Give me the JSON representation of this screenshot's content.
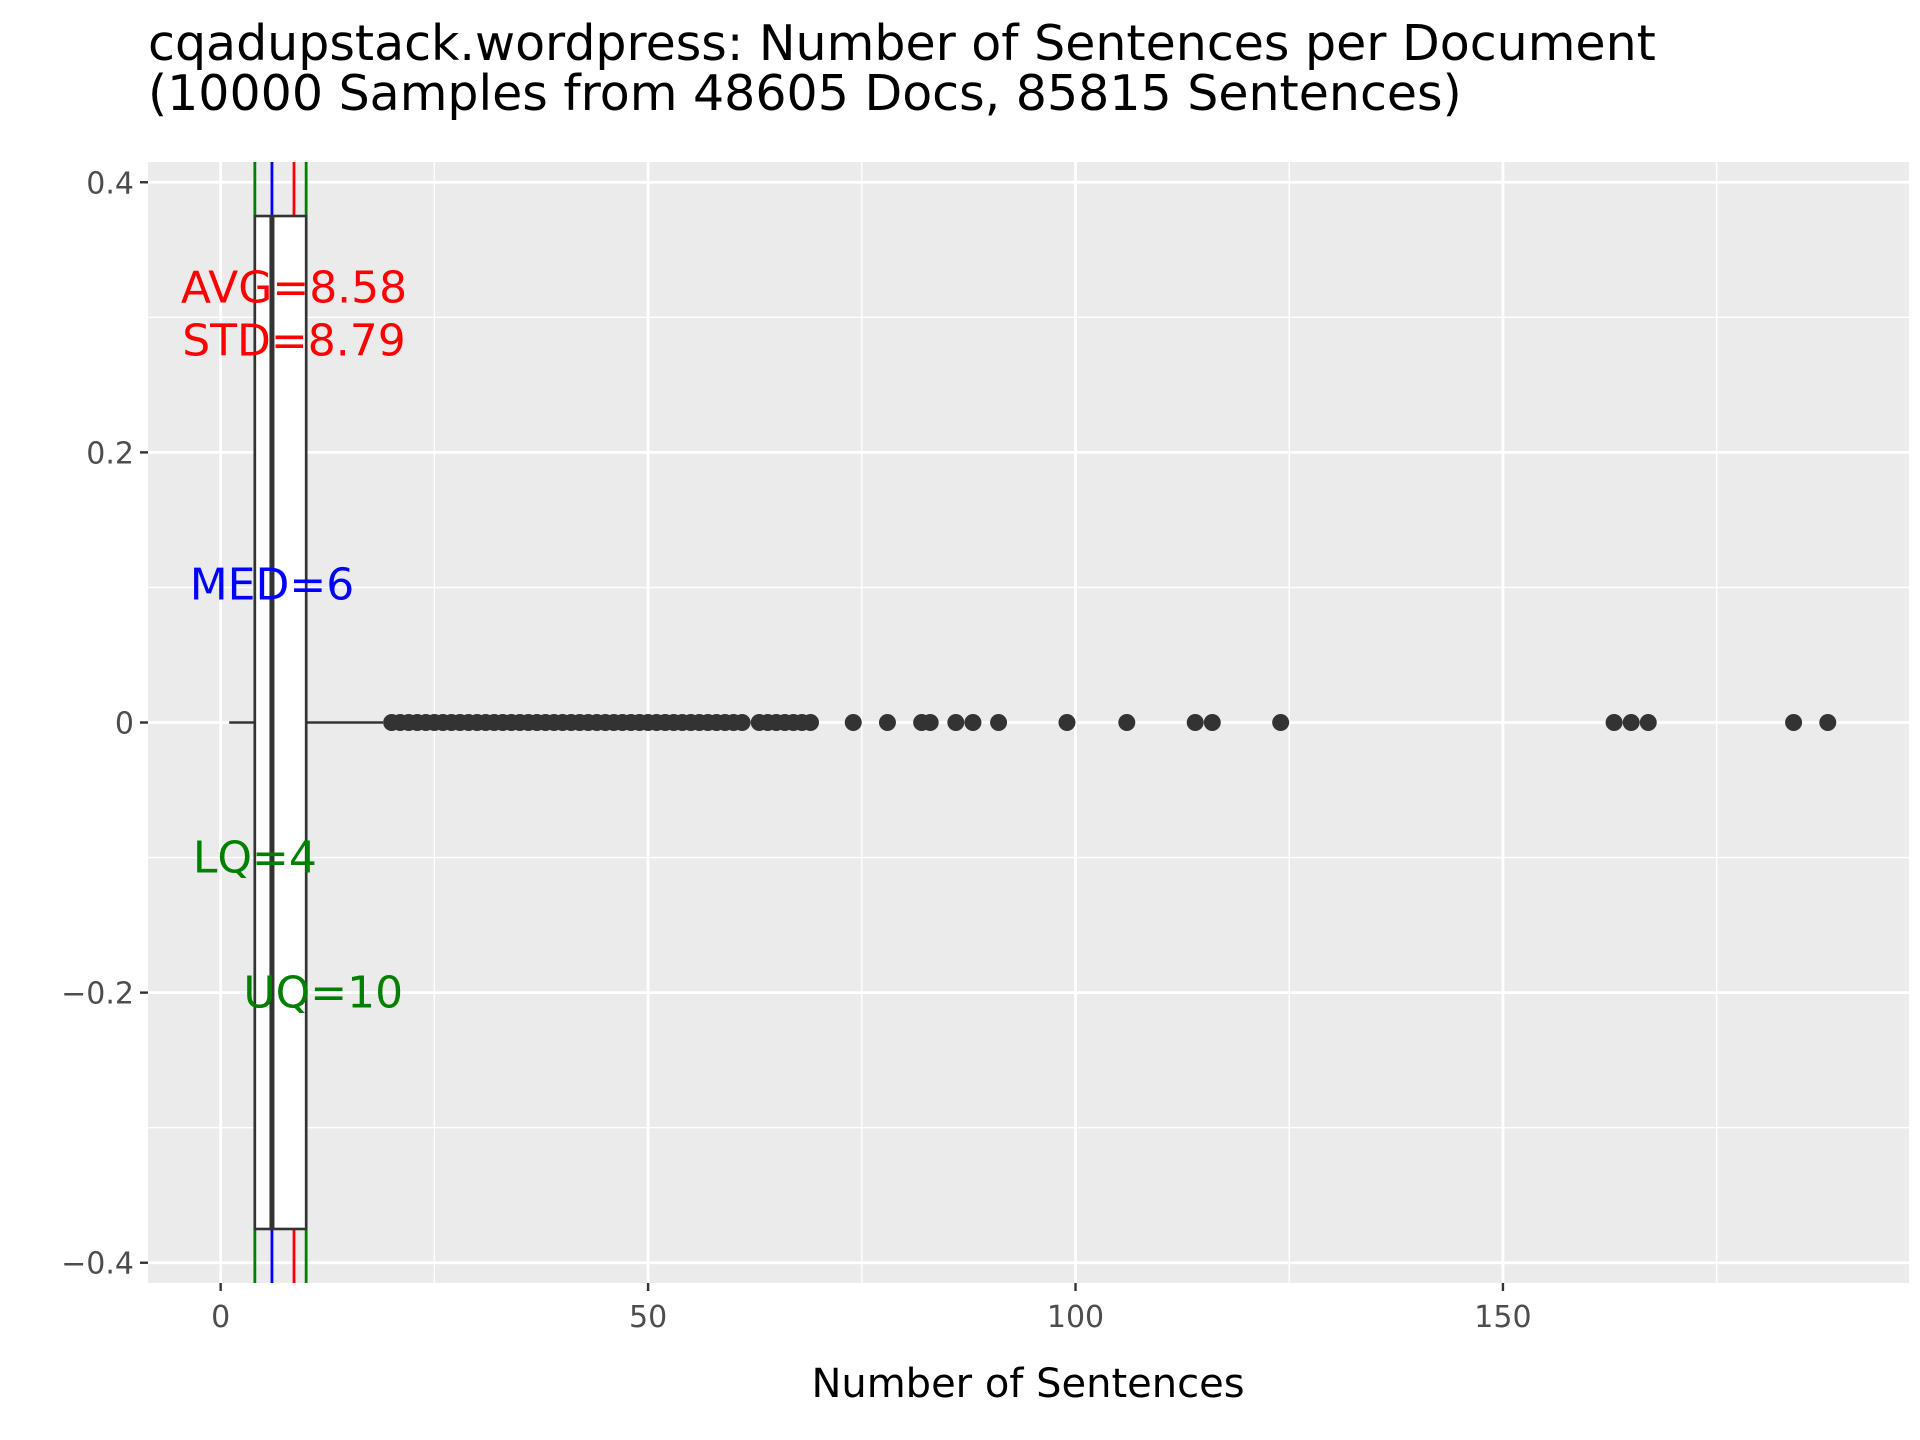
{
  "chart_data": {
    "type": "boxplot",
    "title_line1": "cqadupstack.wordpress: Number of Sentences per Document",
    "title_line2": "(10000 Samples from 48605 Docs, 85815 Sentences)",
    "xlabel": "Number of Sentences",
    "ylabel": "",
    "xlim": [
      -8.5,
      197.5
    ],
    "ylim": [
      -0.415,
      0.415
    ],
    "x_ticks": [
      {
        "value": 0,
        "label": "0"
      },
      {
        "value": 50,
        "label": "50"
      },
      {
        "value": 100,
        "label": "100"
      },
      {
        "value": 150,
        "label": "150"
      }
    ],
    "y_ticks": [
      {
        "value": 0.4,
        "label": "0.4"
      },
      {
        "value": 0.2,
        "label": "0.2"
      },
      {
        "value": 0,
        "label": "0"
      },
      {
        "value": -0.2,
        "label": "−0.2"
      },
      {
        "value": -0.4,
        "label": "−0.4"
      }
    ],
    "grid": true,
    "box": {
      "whisker_low": 1,
      "q1": 4,
      "median": 6,
      "q3": 10,
      "whisker_high": 19,
      "box_half_height": 0.375,
      "outliers": [
        20,
        21,
        22,
        23,
        24,
        25,
        26,
        27,
        28,
        29,
        30,
        31,
        32,
        33,
        34,
        35,
        36,
        37,
        38,
        39,
        40,
        41,
        42,
        43,
        44,
        45,
        46,
        47,
        48,
        49,
        50,
        51,
        52,
        53,
        54,
        55,
        56,
        57,
        58,
        59,
        60,
        61,
        63,
        64,
        65,
        66,
        67,
        68,
        69,
        74,
        78,
        82,
        83,
        86,
        88,
        91,
        99,
        106,
        114,
        116,
        124,
        163,
        165,
        167,
        184,
        188
      ]
    },
    "reference_lines": [
      {
        "name": "LQ",
        "value": 4,
        "color": "#008000"
      },
      {
        "name": "UQ",
        "value": 10,
        "color": "#008000"
      },
      {
        "name": "MED",
        "value": 6,
        "color": "#0000ff"
      },
      {
        "name": "AVG",
        "value": 8.58,
        "color": "#ff0000"
      }
    ],
    "annotations": [
      {
        "text": "AVG=8.58",
        "x": 8.58,
        "y": 0.322,
        "color": "#ff0000"
      },
      {
        "text": "STD=8.79",
        "x": 8.58,
        "y": 0.283,
        "color": "#ff0000"
      },
      {
        "text": "MED=6",
        "x": 6,
        "y": 0.102,
        "color": "#0000ff"
      },
      {
        "text": "LQ=4",
        "x": 4,
        "y": -0.1,
        "color": "#008000"
      },
      {
        "text": "UQ=10",
        "x": 12,
        "y": -0.2,
        "color": "#008000"
      }
    ],
    "stats": {
      "avg": 8.58,
      "std": 8.79,
      "median": 6,
      "lq": 4,
      "uq": 10
    }
  }
}
